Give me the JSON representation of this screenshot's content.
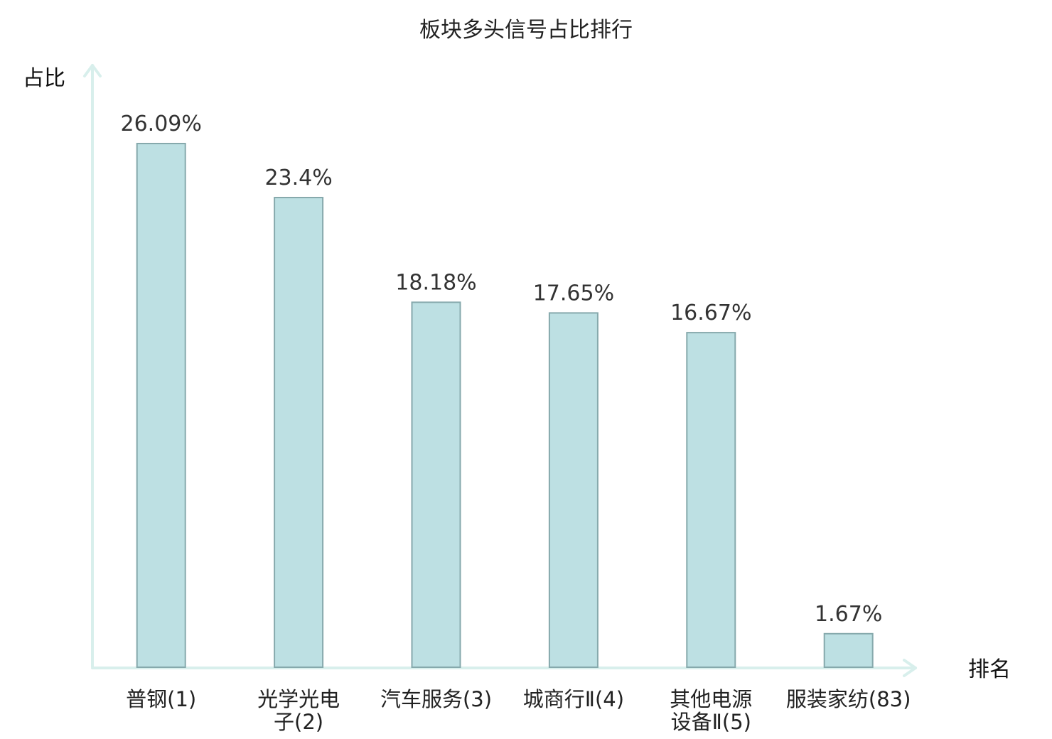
{
  "chart_data": {
    "type": "bar",
    "title": "板块多头信号占比排行",
    "ylabel": "占比",
    "xlabel": "排名",
    "categories": [
      [
        "普钢(1)"
      ],
      [
        "光学光电",
        "子(2)"
      ],
      [
        "汽车服务(3)"
      ],
      [
        "城商行Ⅱ(4)"
      ],
      [
        "其他电源",
        "设备Ⅱ(5)"
      ],
      [
        "服装家纺(83)"
      ]
    ],
    "values": [
      26.09,
      23.4,
      18.18,
      17.65,
      16.67,
      1.67
    ],
    "value_labels": [
      "26.09%",
      "23.4%",
      "18.18%",
      "17.65%",
      "16.67%",
      "1.67%"
    ],
    "highlight_index": 5,
    "highlight_color": "#e02020",
    "bar_color": "#bde0e3",
    "bar_border_color": "#86a9ac",
    "axis_color": "#d8efec",
    "ylim": [
      0,
      26.09
    ],
    "grid": false,
    "legend": false
  }
}
